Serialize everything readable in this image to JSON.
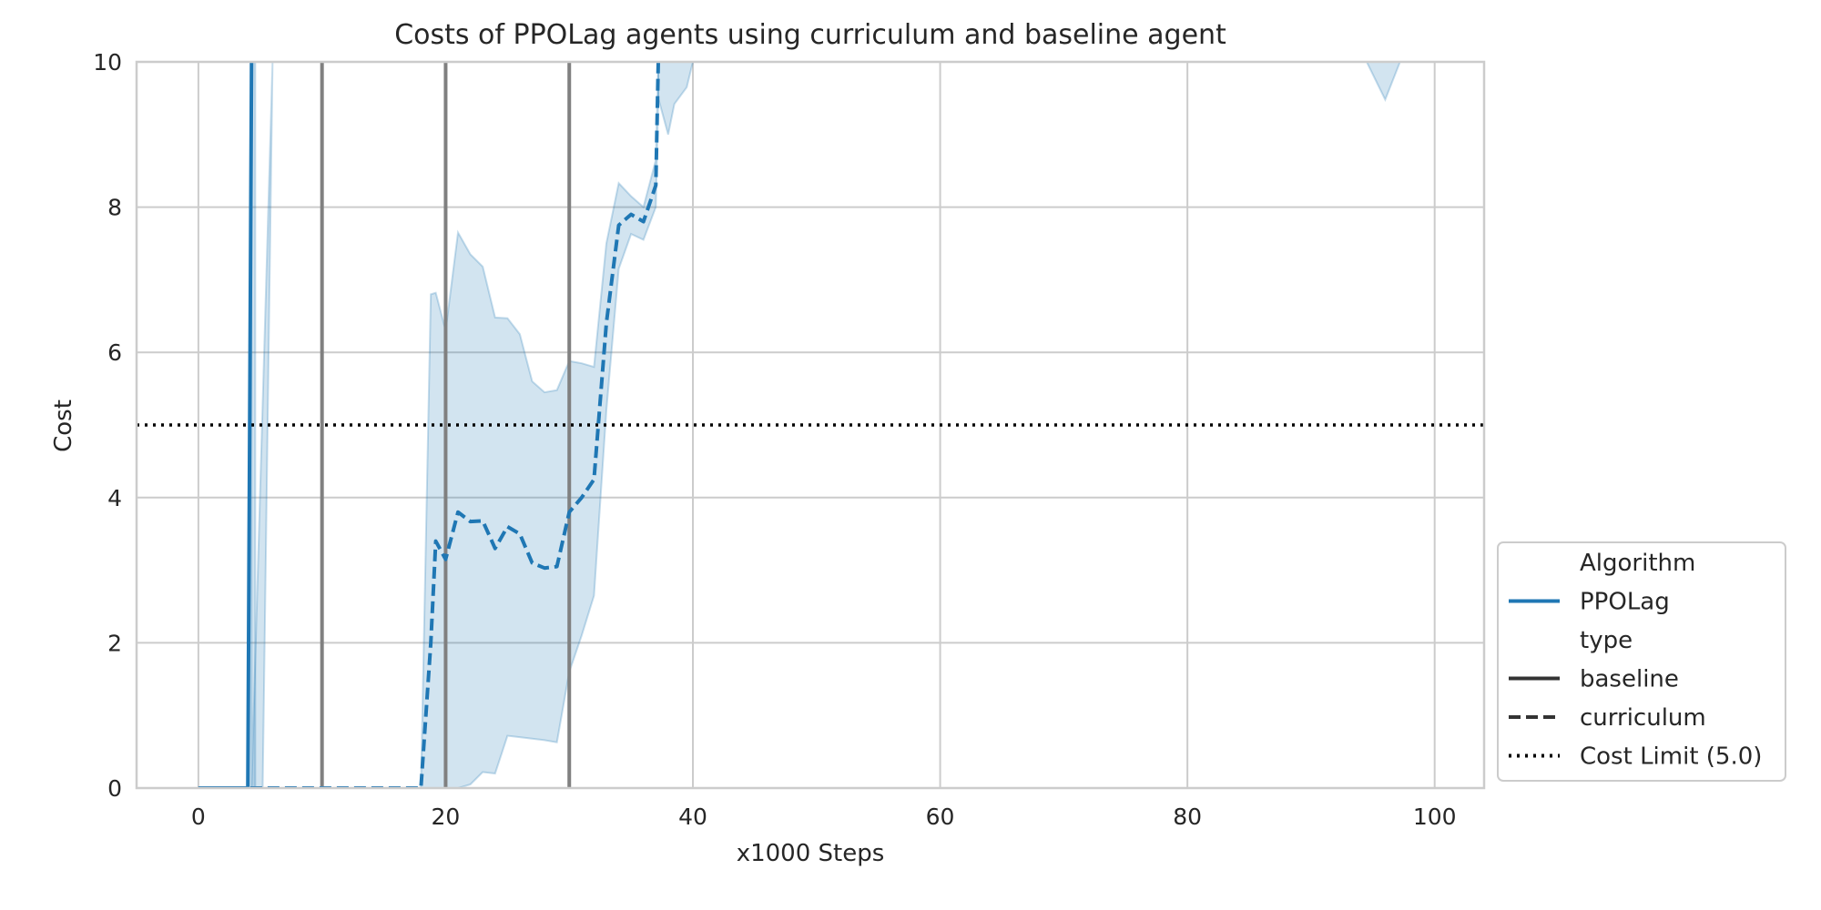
{
  "chart_data": {
    "type": "line",
    "title": "Costs of PPOLag agents using curriculum and baseline agent",
    "xlabel": "x1000 Steps",
    "ylabel": "Cost",
    "xlim": [
      -5,
      104
    ],
    "ylim": [
      0,
      10
    ],
    "xticks": [
      "0",
      "20",
      "40",
      "60",
      "80",
      "100"
    ],
    "yticks": [
      "0",
      "2",
      "4",
      "6",
      "8",
      "10"
    ],
    "grid": true,
    "legend_position": "lower-right outside",
    "legend": {
      "entries": [
        {
          "label": "Algorithm",
          "style": "header"
        },
        {
          "label": "PPOLag",
          "style": "color"
        },
        {
          "label": "type",
          "style": "header"
        },
        {
          "label": "baseline",
          "style": "solid"
        },
        {
          "label": "curriculum",
          "style": "dashed"
        },
        {
          "label": "Cost Limit (5.0)",
          "style": "dotted"
        }
      ]
    },
    "colors": {
      "series": "#1f77b4",
      "band": "#1f77b4",
      "vlines": "#808080",
      "cost_limit": "#000000",
      "grid": "#cccccc"
    },
    "cost_limit": 5.0,
    "vertical_lines": [
      10,
      20,
      30
    ],
    "series": [
      {
        "name": "PPOLag baseline",
        "style": "solid",
        "x": [
          0,
          4.0,
          4.3,
          4.6
        ],
        "y": [
          0,
          0,
          10,
          15
        ],
        "band_upper": [
          0,
          0,
          10,
          15
        ],
        "band_lower": [
          0,
          0,
          0,
          0
        ]
      },
      {
        "name": "PPOLag baseline band",
        "style": "band-only",
        "x": [
          4.3,
          6.0,
          5.2,
          4.3
        ],
        "band_upper": [
          10,
          10,
          10,
          10
        ],
        "band_lower": [
          0,
          10,
          0,
          0
        ]
      },
      {
        "name": "PPOLag curriculum",
        "style": "dashed",
        "x": [
          0,
          18.0,
          18.8,
          19.2,
          20.0,
          21.0,
          22.0,
          23.0,
          24.0,
          25.0,
          26.0,
          27.0,
          28.0,
          29.0,
          30.0,
          31.0,
          32.0,
          33.0,
          34.0,
          35.0,
          36.0,
          37.0,
          37.2
        ],
        "y": [
          0,
          0,
          2.0,
          3.4,
          3.15,
          3.8,
          3.67,
          3.68,
          3.3,
          3.6,
          3.5,
          3.1,
          3.03,
          3.05,
          3.8,
          4.0,
          4.25,
          6.4,
          7.75,
          7.9,
          7.8,
          8.3,
          10
        ],
        "band_upper": [
          0,
          0,
          6.8,
          6.82,
          6.3,
          7.65,
          7.35,
          7.18,
          6.48,
          6.47,
          6.25,
          5.6,
          5.45,
          5.48,
          5.88,
          5.85,
          5.8,
          7.5,
          8.33,
          8.15,
          8.0,
          8.65,
          10
        ],
        "band_lower": [
          0,
          0,
          0,
          0,
          0,
          0,
          0.05,
          0.22,
          0.2,
          0.72,
          0.7,
          0.68,
          0.66,
          0.63,
          1.6,
          2.1,
          2.65,
          5.2,
          7.15,
          7.63,
          7.55,
          8.0,
          9.5
        ]
      },
      {
        "name": "PPOLag curriculum band tail",
        "style": "band-only",
        "x": [
          37.2,
          38.0,
          38.5,
          39.5,
          40.0
        ],
        "band_upper": [
          10,
          10,
          10,
          10,
          10
        ],
        "band_lower": [
          9.5,
          9.0,
          9.42,
          9.65,
          10
        ]
      },
      {
        "name": "PPOLag band near 96",
        "style": "band-only",
        "x": [
          94.5,
          96.0,
          97.2
        ],
        "band_upper": [
          10,
          10,
          10
        ],
        "band_lower": [
          10,
          9.48,
          10
        ]
      }
    ]
  }
}
